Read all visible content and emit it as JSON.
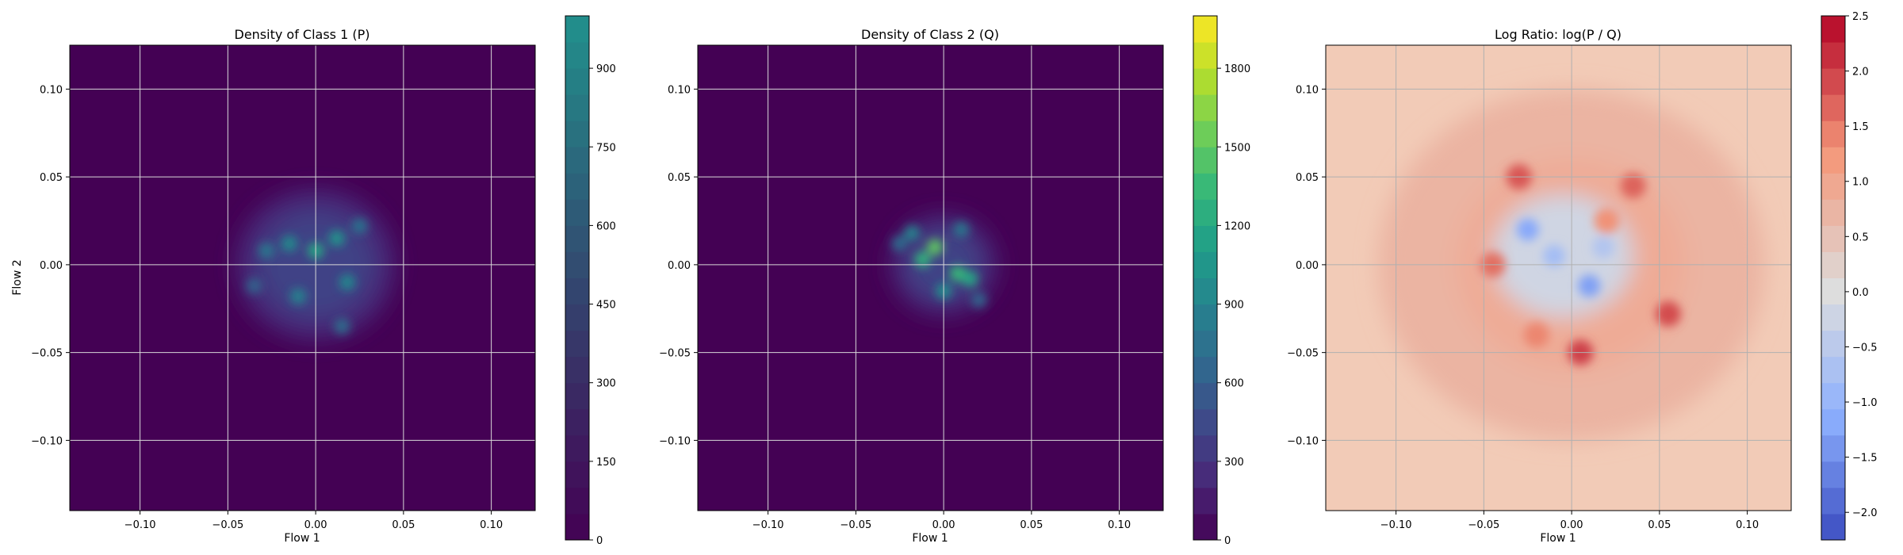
{
  "chart_data": [
    {
      "type": "heatmap",
      "title": "Density of Class 1 (P)",
      "xlabel": "Flow 1",
      "ylabel": "Flow 2",
      "xlim": [
        -0.14,
        0.125
      ],
      "ylim": [
        -0.14,
        0.125
      ],
      "xticks": [
        -0.1,
        -0.05,
        0.0,
        0.05,
        0.1
      ],
      "xtick_labels": [
        "−0.10",
        "−0.05",
        "0.00",
        "0.05",
        "0.10"
      ],
      "yticks": [
        -0.1,
        -0.05,
        0.0,
        0.05,
        0.1
      ],
      "ytick_labels": [
        "−0.10",
        "−0.05",
        "0.00",
        "0.05",
        "0.10"
      ],
      "grid": true,
      "colormap": "viridis",
      "background_color": "#440154",
      "colorbar": {
        "min": 0,
        "max": 1000,
        "ticks": [
          0,
          150,
          300,
          450,
          600,
          750,
          900
        ],
        "tick_labels": [
          "0",
          "150",
          "300",
          "450",
          "600",
          "750",
          "900"
        ],
        "top_color": "#21918c"
      },
      "density_blob": {
        "center": [
          0.0,
          0.0
        ],
        "spread": 0.045,
        "peak_value": 620,
        "hotspots": [
          {
            "x": 0.0,
            "y": 0.008,
            "value": 600
          },
          {
            "x": 0.012,
            "y": 0.015,
            "value": 520
          },
          {
            "x": -0.015,
            "y": 0.012,
            "value": 480
          },
          {
            "x": -0.01,
            "y": -0.018,
            "value": 450
          },
          {
            "x": 0.018,
            "y": -0.01,
            "value": 470
          },
          {
            "x": -0.028,
            "y": 0.008,
            "value": 400
          },
          {
            "x": 0.025,
            "y": 0.022,
            "value": 380
          },
          {
            "x": 0.015,
            "y": -0.035,
            "value": 360
          },
          {
            "x": -0.035,
            "y": -0.012,
            "value": 320
          }
        ]
      }
    },
    {
      "type": "heatmap",
      "title": "Density of Class 2 (Q)",
      "xlabel": "Flow 1",
      "ylabel": "",
      "xlim": [
        -0.14,
        0.125
      ],
      "ylim": [
        -0.14,
        0.125
      ],
      "xticks": [
        -0.1,
        -0.05,
        0.0,
        0.05,
        0.1
      ],
      "xtick_labels": [
        "−0.10",
        "−0.05",
        "0.00",
        "0.05",
        "0.10"
      ],
      "yticks": [
        -0.1,
        -0.05,
        0.0,
        0.05,
        0.1
      ],
      "ytick_labels": [
        "−0.10",
        "−0.05",
        "0.00",
        "0.05",
        "0.10"
      ],
      "grid": true,
      "colormap": "viridis",
      "background_color": "#440154",
      "colorbar": {
        "min": 0,
        "max": 2000,
        "ticks": [
          0,
          300,
          600,
          900,
          1200,
          1500,
          1800
        ],
        "tick_labels": [
          "0",
          "300",
          "600",
          "900",
          "1200",
          "1500",
          "1800"
        ],
        "top_color": "#fde725"
      },
      "density_blob": {
        "center": [
          0.0,
          0.0
        ],
        "spread": 0.03,
        "peak_value": 1500,
        "hotspots": [
          {
            "x": -0.005,
            "y": 0.01,
            "value": 1500
          },
          {
            "x": -0.012,
            "y": 0.003,
            "value": 1300
          },
          {
            "x": 0.008,
            "y": -0.005,
            "value": 1350
          },
          {
            "x": 0.015,
            "y": -0.008,
            "value": 1200
          },
          {
            "x": -0.018,
            "y": 0.018,
            "value": 900
          },
          {
            "x": 0.0,
            "y": -0.015,
            "value": 1000
          },
          {
            "x": -0.025,
            "y": 0.012,
            "value": 700
          },
          {
            "x": 0.02,
            "y": -0.02,
            "value": 650
          },
          {
            "x": 0.01,
            "y": 0.02,
            "value": 800
          }
        ]
      }
    },
    {
      "type": "heatmap",
      "title": "Log Ratio: log(P / Q)",
      "xlabel": "Flow 1",
      "ylabel": "",
      "xlim": [
        -0.14,
        0.125
      ],
      "ylim": [
        -0.14,
        0.125
      ],
      "xticks": [
        -0.1,
        -0.05,
        0.0,
        0.05,
        0.1
      ],
      "xtick_labels": [
        "−0.10",
        "−0.05",
        "0.00",
        "0.05",
        "0.10"
      ],
      "yticks": [
        -0.1,
        -0.05,
        0.0,
        0.05,
        0.1
      ],
      "ytick_labels": [
        "−0.10",
        "−0.05",
        "0.00",
        "0.05",
        "0.10"
      ],
      "grid": true,
      "colormap": "coolwarm",
      "background_color": "#f2cbb7",
      "colorbar": {
        "min": -2.25,
        "max": 2.5,
        "ticks": [
          -2.0,
          -1.5,
          -1.0,
          -0.5,
          0.0,
          0.5,
          1.0,
          1.5,
          2.0,
          2.5
        ],
        "tick_labels": [
          "−2.0",
          "−1.5",
          "−1.0",
          "−0.5",
          "0.0",
          "0.5",
          "1.0",
          "1.5",
          "2.0",
          "2.5"
        ]
      },
      "regions": {
        "outer_value": 0.5,
        "ring_value": 0.9,
        "blue_core": [
          {
            "x": -0.025,
            "y": 0.02,
            "value": -1.2
          },
          {
            "x": 0.01,
            "y": -0.012,
            "value": -1.3
          },
          {
            "x": -0.01,
            "y": 0.005,
            "value": -0.8
          },
          {
            "x": 0.018,
            "y": 0.01,
            "value": -0.6
          }
        ],
        "red_hotspots": [
          {
            "x": -0.03,
            "y": 0.05,
            "value": 1.8
          },
          {
            "x": 0.035,
            "y": 0.045,
            "value": 1.7
          },
          {
            "x": -0.045,
            "y": 0.0,
            "value": 1.6
          },
          {
            "x": 0.055,
            "y": -0.028,
            "value": 1.9
          },
          {
            "x": 0.005,
            "y": -0.05,
            "value": 2.0
          },
          {
            "x": -0.02,
            "y": -0.04,
            "value": 1.4
          },
          {
            "x": 0.02,
            "y": 0.025,
            "value": 1.3
          }
        ]
      }
    }
  ]
}
